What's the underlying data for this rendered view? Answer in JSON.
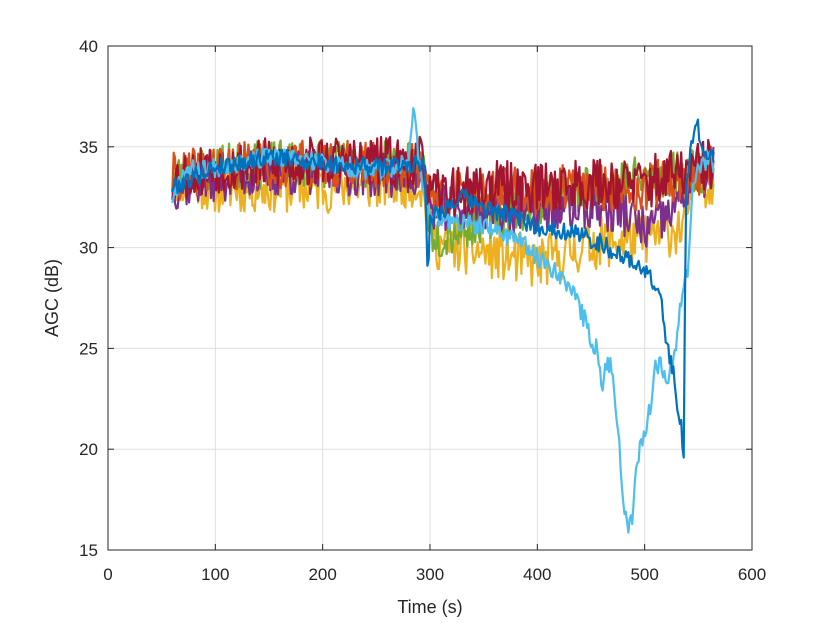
{
  "chart_data": {
    "type": "line",
    "title": "",
    "xlabel": "Time (s)",
    "ylabel": "AGC (dB)",
    "xlim": [
      0,
      600
    ],
    "ylim": [
      15,
      40
    ],
    "xticks": [
      0,
      100,
      200,
      300,
      400,
      500,
      600
    ],
    "yticks": [
      15,
      20,
      25,
      30,
      35,
      40
    ],
    "x_tick_labels": [
      "0",
      "100",
      "200",
      "300",
      "400",
      "500",
      "600"
    ],
    "y_tick_labels": [
      "15",
      "20",
      "25",
      "30",
      "35",
      "40"
    ],
    "grid": true,
    "legend": "none",
    "series": [
      {
        "color": "#EDB120",
        "noise": 1.3,
        "seed": 11,
        "points": [
          [
            60,
            33.5
          ],
          [
            100,
            33.0
          ],
          [
            200,
            33.0
          ],
          [
            290,
            33.3
          ],
          [
            300,
            31.5
          ],
          [
            305,
            30.2
          ],
          [
            350,
            29.8
          ],
          [
            400,
            29.2
          ],
          [
            450,
            30.2
          ],
          [
            500,
            30.5
          ],
          [
            535,
            31.0
          ],
          [
            545,
            33.0
          ],
          [
            565,
            33.5
          ]
        ]
      },
      {
        "color": "#77AC30",
        "noise": 1.2,
        "seed": 23,
        "points": [
          [
            60,
            33.5
          ],
          [
            100,
            34.0
          ],
          [
            200,
            34.2
          ],
          [
            295,
            34.0
          ],
          [
            300,
            31.0
          ],
          [
            310,
            30.6
          ],
          [
            350,
            31.5
          ],
          [
            400,
            32.2
          ],
          [
            450,
            33.0
          ],
          [
            500,
            33.5
          ],
          [
            540,
            33.8
          ],
          [
            565,
            34.0
          ]
        ]
      },
      {
        "color": "#7E2F8E",
        "noise": 1.2,
        "seed": 37,
        "points": [
          [
            60,
            33.0
          ],
          [
            100,
            33.5
          ],
          [
            200,
            33.8
          ],
          [
            295,
            33.6
          ],
          [
            300,
            32.0
          ],
          [
            350,
            32.0
          ],
          [
            400,
            31.8
          ],
          [
            450,
            32.0
          ],
          [
            480,
            31.8
          ],
          [
            500,
            30.8
          ],
          [
            520,
            31.5
          ],
          [
            540,
            33.0
          ],
          [
            565,
            34.0
          ]
        ]
      },
      {
        "color": "#D95319",
        "noise": 1.2,
        "seed": 41,
        "points": [
          [
            60,
            33.5
          ],
          [
            100,
            34.0
          ],
          [
            200,
            34.2
          ],
          [
            295,
            34.0
          ],
          [
            300,
            32.5
          ],
          [
            350,
            32.8
          ],
          [
            400,
            32.8
          ],
          [
            450,
            33.0
          ],
          [
            500,
            33.0
          ],
          [
            540,
            33.5
          ],
          [
            565,
            34.0
          ]
        ]
      },
      {
        "color": "#A2142F",
        "noise": 1.3,
        "seed": 53,
        "points": [
          [
            60,
            33.5
          ],
          [
            100,
            34.0
          ],
          [
            200,
            34.3
          ],
          [
            295,
            34.2
          ],
          [
            300,
            32.5
          ],
          [
            350,
            33.0
          ],
          [
            400,
            33.0
          ],
          [
            450,
            33.2
          ],
          [
            500,
            33.2
          ],
          [
            540,
            33.8
          ],
          [
            565,
            34.2
          ]
        ]
      },
      {
        "color": "#4DBEEE",
        "noise": 0.5,
        "seed": 67,
        "points": [
          [
            60,
            32.5
          ],
          [
            70,
            33.8
          ],
          [
            100,
            34.0
          ],
          [
            150,
            34.5
          ],
          [
            200,
            34.2
          ],
          [
            250,
            33.8
          ],
          [
            280,
            34.2
          ],
          [
            285,
            37.4
          ],
          [
            290,
            34.0
          ],
          [
            300,
            31.5
          ],
          [
            350,
            31.0
          ],
          [
            380,
            30.5
          ],
          [
            400,
            29.5
          ],
          [
            420,
            28.8
          ],
          [
            430,
            28.0
          ],
          [
            440,
            27.0
          ],
          [
            450,
            25.5
          ],
          [
            455,
            25.0
          ],
          [
            460,
            23.0
          ],
          [
            465,
            24.5
          ],
          [
            470,
            24.0
          ],
          [
            475,
            21.0
          ],
          [
            480,
            17.5
          ],
          [
            485,
            16.3
          ],
          [
            488,
            16.5
          ],
          [
            492,
            19.0
          ],
          [
            497,
            20.5
          ],
          [
            500,
            20.8
          ],
          [
            505,
            22.0
          ],
          [
            510,
            24.0
          ],
          [
            515,
            24.5
          ],
          [
            520,
            23.5
          ],
          [
            525,
            24.0
          ],
          [
            530,
            25.5
          ],
          [
            535,
            28.0
          ],
          [
            540,
            29.0
          ],
          [
            545,
            33.5
          ],
          [
            560,
            34.5
          ],
          [
            565,
            34.0
          ]
        ]
      },
      {
        "color": "#0072BD",
        "noise": 0.45,
        "seed": 79,
        "points": [
          [
            60,
            33.0
          ],
          [
            100,
            34.0
          ],
          [
            150,
            34.5
          ],
          [
            200,
            34.2
          ],
          [
            250,
            34.0
          ],
          [
            295,
            34.2
          ],
          [
            298,
            28.5
          ],
          [
            300,
            31.5
          ],
          [
            330,
            32.5
          ],
          [
            350,
            32.0
          ],
          [
            380,
            31.5
          ],
          [
            400,
            31.0
          ],
          [
            430,
            30.8
          ],
          [
            460,
            30.2
          ],
          [
            480,
            29.5
          ],
          [
            500,
            29.0
          ],
          [
            510,
            28.0
          ],
          [
            515,
            27.5
          ],
          [
            520,
            25.5
          ],
          [
            525,
            24.0
          ],
          [
            528,
            23.5
          ],
          [
            530,
            22.5
          ],
          [
            533,
            21.5
          ],
          [
            535,
            20.5
          ],
          [
            537,
            19.0
          ],
          [
            538,
            33.0
          ],
          [
            545,
            35.5
          ],
          [
            548,
            36.5
          ],
          [
            555,
            34.5
          ],
          [
            565,
            34.5
          ]
        ]
      }
    ]
  }
}
